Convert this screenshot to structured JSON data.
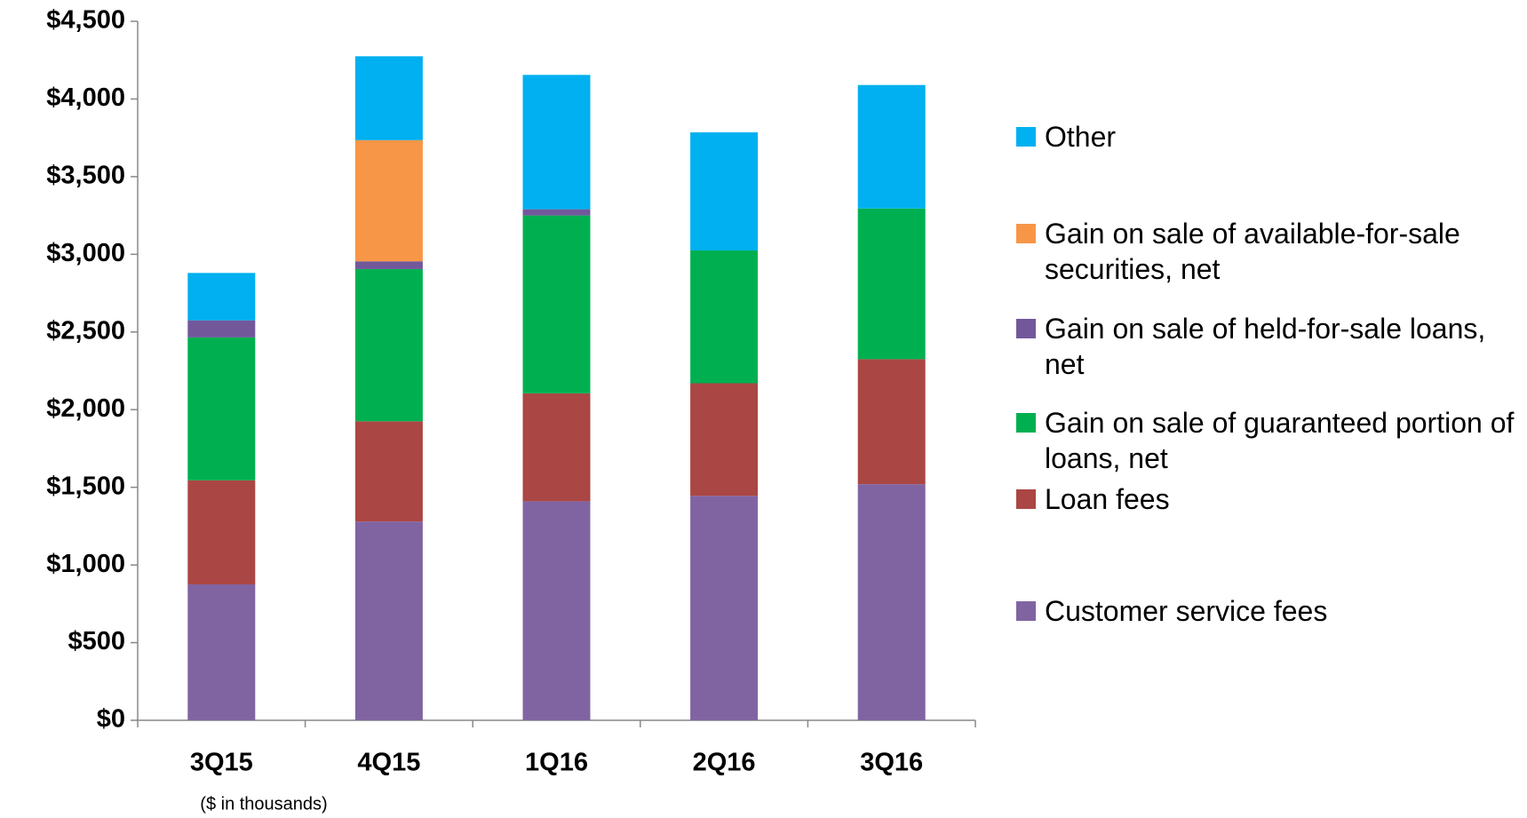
{
  "chart_data": {
    "type": "stacked_bar",
    "note": "($ in thousands)",
    "categories": [
      "3Q15",
      "4Q15",
      "1Q16",
      "2Q16",
      "3Q16"
    ],
    "series": [
      {
        "name": "Customer service fees",
        "color": "#8064a2",
        "values": [
          875,
          1280,
          1410,
          1445,
          1520
        ]
      },
      {
        "name": "Loan fees",
        "color": "#aa4643",
        "values": [
          670,
          645,
          695,
          725,
          805
        ]
      },
      {
        "name": "Gain on sale of guaranteed portion of loans, net",
        "color": "#00b050",
        "values": [
          920,
          980,
          1145,
          855,
          970
        ]
      },
      {
        "name": "Gain on sale of held-for-sale loans, net",
        "color": "#72589b",
        "values": [
          110,
          50,
          40,
          0,
          0
        ]
      },
      {
        "name": "Gain on sale of available-for-sale securities, net",
        "color": "#f79646",
        "values": [
          0,
          780,
          0,
          0,
          0
        ]
      },
      {
        "name": "Other",
        "color": "#00b0f0",
        "values": [
          305,
          540,
          865,
          760,
          795
        ]
      }
    ],
    "ylim": [
      0,
      4500
    ],
    "yticks": [
      {
        "value": 0,
        "label": "$0"
      },
      {
        "value": 500,
        "label": "$500"
      },
      {
        "value": 1000,
        "label": "$1,000"
      },
      {
        "value": 1500,
        "label": "$1,500"
      },
      {
        "value": 2000,
        "label": "$2,000"
      },
      {
        "value": 2500,
        "label": "$2,500"
      },
      {
        "value": 3000,
        "label": "$3,000"
      },
      {
        "value": 3500,
        "label": "$3,500"
      },
      {
        "value": 4000,
        "label": "$4,000"
      },
      {
        "value": 4500,
        "label": "$4,500"
      }
    ],
    "legend": "right"
  }
}
